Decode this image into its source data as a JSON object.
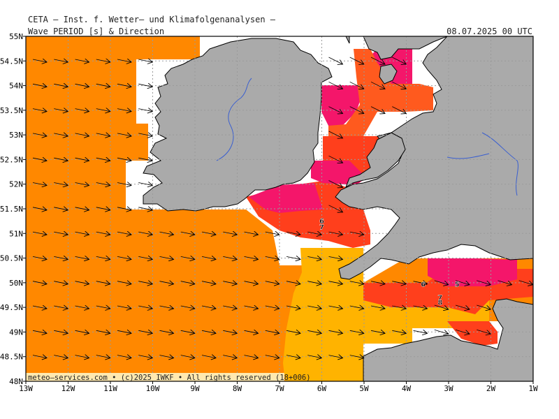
{
  "header": {
    "institute": "CETA — Inst. f. Wetter— und Klimafolgenanalysen —",
    "product": "Wave_PERIOD [s] & Direction",
    "valid_time": "08.07.2025 00 UTC"
  },
  "footer": {
    "credit": "meteo—services.com • (c)2025 IWKF • All rights reserved (18+006)"
  },
  "axes": {
    "lat_labels": [
      "55N",
      "54.5N",
      "54N",
      "53.5N",
      "53N",
      "52.5N",
      "52N",
      "51.5N",
      "51N",
      "50.5N",
      "50N",
      "49.5N",
      "49N",
      "48.5N",
      "48N"
    ],
    "lon_labels": [
      "13W",
      "12W",
      "11W",
      "10W",
      "9W",
      "8W",
      "7W",
      "6W",
      "5W",
      "4W",
      "3W",
      "2W",
      "1W"
    ],
    "lat_range": [
      48,
      55
    ],
    "lon_range": [
      -13,
      -1
    ]
  },
  "contour_labels": [
    {
      "text": "6",
      "lon": -6.0,
      "lat": 51.2
    },
    {
      "text": "7",
      "lon": -6.0,
      "lat": 51.08
    },
    {
      "text": "6",
      "lon": -3.6,
      "lat": 49.92
    },
    {
      "text": "5",
      "lon": -2.8,
      "lat": 49.92
    },
    {
      "text": "7",
      "lon": -3.2,
      "lat": 49.65
    },
    {
      "text": "8",
      "lon": -3.2,
      "lat": 49.55
    }
  ],
  "colors": {
    "sea_orange": "#ff8800",
    "sea_yellow": "#ffb300",
    "sea_red": "#ff3f1c",
    "sea_magenta": "#f4166a",
    "land": "#aaaaaa",
    "coast": "#000000",
    "river": "#3a5fd0"
  }
}
